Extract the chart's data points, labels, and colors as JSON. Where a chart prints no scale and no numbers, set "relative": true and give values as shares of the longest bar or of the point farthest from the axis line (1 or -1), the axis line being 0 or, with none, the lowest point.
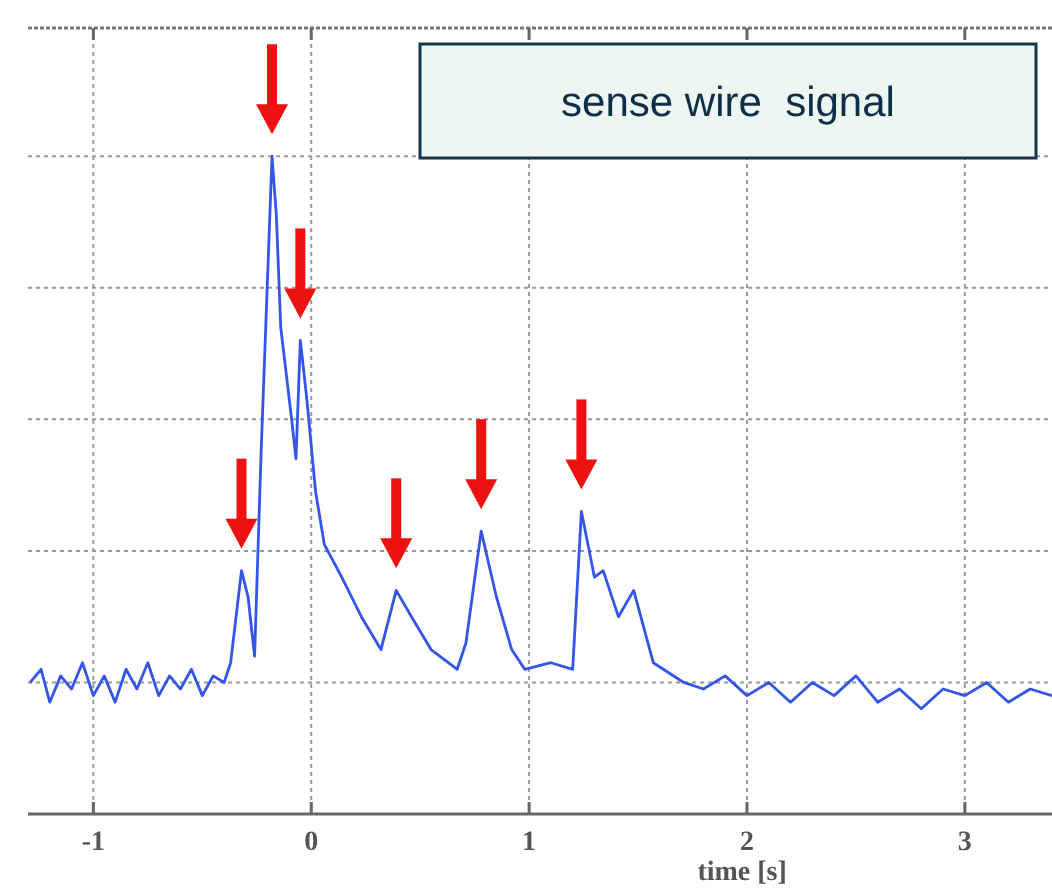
{
  "chart_data": {
    "type": "line",
    "relative": true,
    "xlabel": "time [s]",
    "annotations": [
      "sense wire  signal"
    ],
    "xlim": [
      -1.3,
      3.4
    ],
    "xticks": [
      -1,
      0,
      1,
      2,
      3
    ],
    "grid": true,
    "marker": "none",
    "line_style": "solid",
    "series": [
      {
        "color": "#3355e8",
        "x": [
          -1.29,
          -1.24,
          -1.2,
          -1.15,
          -1.1,
          -1.05,
          -1.0,
          -0.95,
          -0.9,
          -0.85,
          -0.8,
          -0.75,
          -0.7,
          -0.65,
          -0.6,
          -0.55,
          -0.5,
          -0.45,
          -0.4,
          -0.37,
          -0.32,
          -0.29,
          -0.26,
          -0.23,
          -0.18,
          -0.16,
          -0.14,
          -0.09,
          -0.07,
          -0.05,
          -0.02,
          0.02,
          0.06,
          0.14,
          0.23,
          0.32,
          0.39,
          0.46,
          0.55,
          0.67,
          0.71,
          0.78,
          0.85,
          0.92,
          0.98,
          1.1,
          1.2,
          1.24,
          1.3,
          1.34,
          1.41,
          1.48,
          1.57,
          1.71,
          1.8,
          1.9,
          2.0,
          2.1,
          2.2,
          2.3,
          2.4,
          2.5,
          2.6,
          2.7,
          2.8,
          2.9,
          3.0,
          3.1,
          3.2,
          3.3,
          3.4
        ],
        "values": [
          0.2,
          0.22,
          0.17,
          0.21,
          0.19,
          0.23,
          0.18,
          0.21,
          0.17,
          0.22,
          0.19,
          0.23,
          0.18,
          0.21,
          0.19,
          0.22,
          0.18,
          0.21,
          0.2,
          0.23,
          0.37,
          0.33,
          0.24,
          0.55,
          1.0,
          0.91,
          0.74,
          0.6,
          0.54,
          0.72,
          0.63,
          0.49,
          0.41,
          0.36,
          0.3,
          0.25,
          0.34,
          0.3,
          0.25,
          0.22,
          0.26,
          0.43,
          0.33,
          0.25,
          0.22,
          0.23,
          0.22,
          0.46,
          0.36,
          0.37,
          0.3,
          0.34,
          0.23,
          0.2,
          0.19,
          0.21,
          0.18,
          0.2,
          0.17,
          0.2,
          0.18,
          0.21,
          0.17,
          0.19,
          0.16,
          0.19,
          0.18,
          0.2,
          0.17,
          0.19,
          0.18
        ]
      }
    ]
  }
}
